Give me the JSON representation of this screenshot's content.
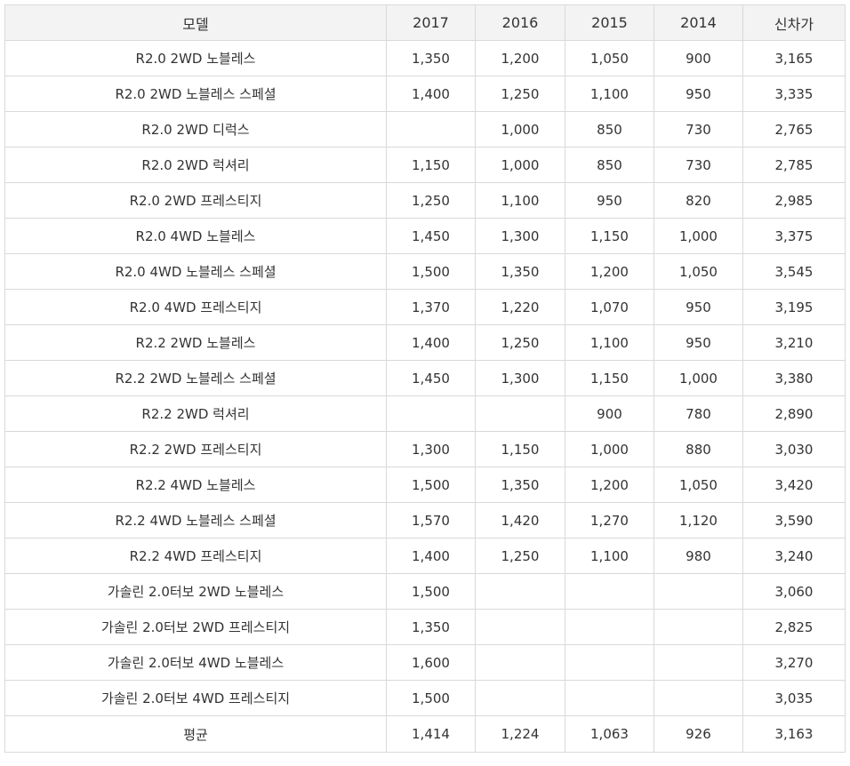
{
  "table": {
    "headers": [
      "모델",
      "2017",
      "2016",
      "2015",
      "2014",
      "신차가"
    ],
    "rows": [
      [
        "R2.0 2WD 노블레스",
        "1,350",
        "1,200",
        "1,050",
        "900",
        "3,165"
      ],
      [
        "R2.0 2WD 노블레스 스페셜",
        "1,400",
        "1,250",
        "1,100",
        "950",
        "3,335"
      ],
      [
        "R2.0 2WD 디럭스",
        "",
        "1,000",
        "850",
        "730",
        "2,765"
      ],
      [
        "R2.0 2WD 럭셔리",
        "1,150",
        "1,000",
        "850",
        "730",
        "2,785"
      ],
      [
        "R2.0 2WD 프레스티지",
        "1,250",
        "1,100",
        "950",
        "820",
        "2,985"
      ],
      [
        "R2.0 4WD 노블레스",
        "1,450",
        "1,300",
        "1,150",
        "1,000",
        "3,375"
      ],
      [
        "R2.0 4WD 노블레스 스페셜",
        "1,500",
        "1,350",
        "1,200",
        "1,050",
        "3,545"
      ],
      [
        "R2.0 4WD 프레스티지",
        "1,370",
        "1,220",
        "1,070",
        "950",
        "3,195"
      ],
      [
        "R2.2 2WD 노블레스",
        "1,400",
        "1,250",
        "1,100",
        "950",
        "3,210"
      ],
      [
        "R2.2 2WD 노블레스 스페셜",
        "1,450",
        "1,300",
        "1,150",
        "1,000",
        "3,380"
      ],
      [
        "R2.2 2WD 럭셔리",
        "",
        "",
        "900",
        "780",
        "2,890"
      ],
      [
        "R2.2 2WD 프레스티지",
        "1,300",
        "1,150",
        "1,000",
        "880",
        "3,030"
      ],
      [
        "R2.2 4WD 노블레스",
        "1,500",
        "1,350",
        "1,200",
        "1,050",
        "3,420"
      ],
      [
        "R2.2 4WD 노블레스 스페셜",
        "1,570",
        "1,420",
        "1,270",
        "1,120",
        "3,590"
      ],
      [
        "R2.2 4WD 프레스티지",
        "1,400",
        "1,250",
        "1,100",
        "980",
        "3,240"
      ],
      [
        "가솔린 2.0터보 2WD 노블레스",
        "1,500",
        "",
        "",
        "",
        "3,060"
      ],
      [
        "가솔린 2.0터보 2WD 프레스티지",
        "1,350",
        "",
        "",
        "",
        "2,825"
      ],
      [
        "가솔린 2.0터보 4WD 노블레스",
        "1,600",
        "",
        "",
        "",
        "3,270"
      ],
      [
        "가솔린 2.0터보 4WD 프레스티지",
        "1,500",
        "",
        "",
        "",
        "3,035"
      ],
      [
        "평균",
        "1,414",
        "1,224",
        "1,063",
        "926",
        "3,163"
      ]
    ]
  }
}
